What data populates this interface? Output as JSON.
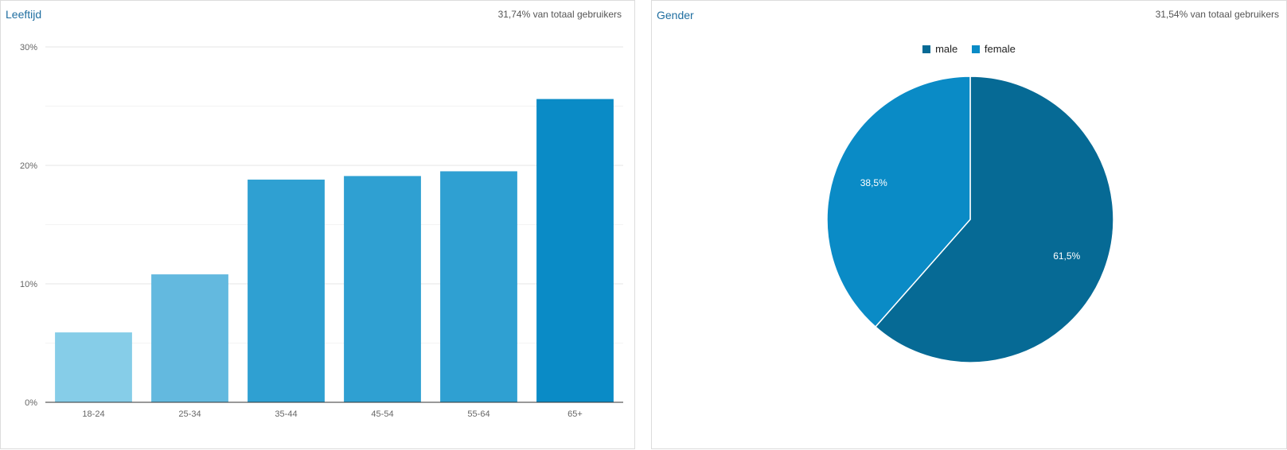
{
  "age_card": {
    "title": "Leeftijd",
    "subtitle": "31,74% van totaal gebruikers"
  },
  "gender_card": {
    "title": "Gender",
    "subtitle": "31,54% van totaal gebruikers"
  },
  "chart_data": [
    {
      "type": "bar",
      "title": "Leeftijd",
      "categories": [
        "18-24",
        "25-34",
        "35-44",
        "45-54",
        "55-64",
        "65+"
      ],
      "values": [
        5.9,
        10.8,
        18.8,
        19.1,
        19.5,
        25.6
      ],
      "colors": [
        "#86cde8",
        "#63b9df",
        "#2fa0d2",
        "#2fa0d2",
        "#2fa0d2",
        "#0a8bc6"
      ],
      "ylim": [
        0,
        30
      ],
      "yticks": [
        0,
        10,
        20,
        30
      ],
      "ytick_labels": [
        "0%",
        "10%",
        "20%",
        "30%"
      ],
      "grid": true,
      "xlabel": "",
      "ylabel": ""
    },
    {
      "type": "pie",
      "title": "Gender",
      "labels": [
        "male",
        "female"
      ],
      "values": [
        61.5,
        38.5
      ],
      "value_labels": [
        "61,5%",
        "38,5%"
      ],
      "colors": [
        "#066a95",
        "#0a8bc6"
      ],
      "legend": "top-center"
    }
  ]
}
